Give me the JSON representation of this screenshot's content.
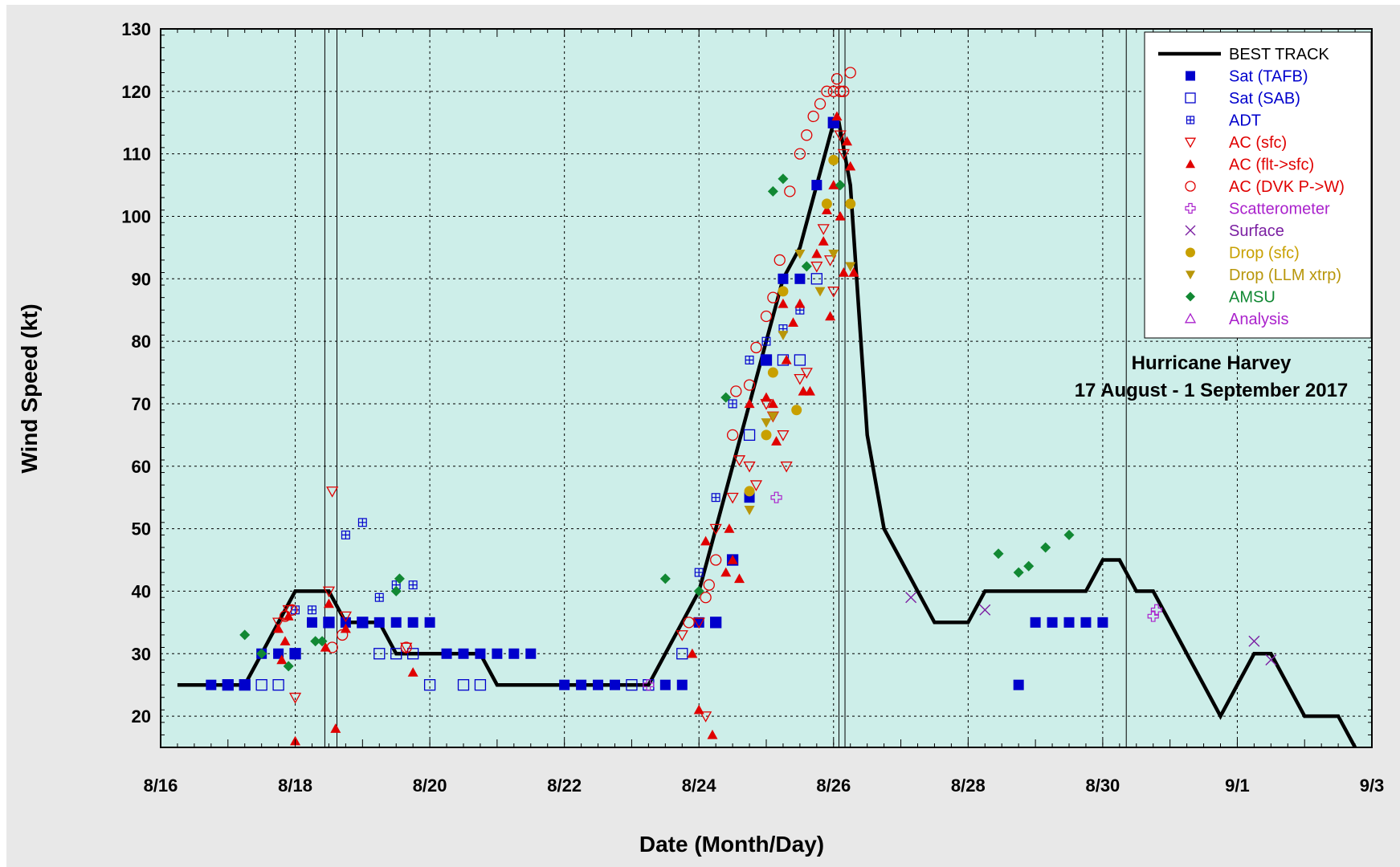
{
  "chart_data": {
    "type": "scatter",
    "title": "",
    "annotation_lines": [
      "Hurricane Harvey",
      "17 August - 1 September 2017"
    ],
    "xlabel": "Date (Month/Day)",
    "ylabel": "Wind Speed (kt)",
    "x_unit": "days since 8/16 00 UTC",
    "xlim": [
      0,
      18
    ],
    "ylim": [
      15,
      130
    ],
    "x_ticks": [
      {
        "x": 0,
        "label": "8/16"
      },
      {
        "x": 2,
        "label": "8/18"
      },
      {
        "x": 4,
        "label": "8/20"
      },
      {
        "x": 6,
        "label": "8/22"
      },
      {
        "x": 8,
        "label": "8/24"
      },
      {
        "x": 10,
        "label": "8/26"
      },
      {
        "x": 12,
        "label": "8/28"
      },
      {
        "x": 14,
        "label": "8/30"
      },
      {
        "x": 16,
        "label": "9/1"
      },
      {
        "x": 18,
        "label": "9/3"
      }
    ],
    "y_ticks": [
      20,
      30,
      40,
      50,
      60,
      70,
      80,
      90,
      100,
      110,
      120,
      130
    ],
    "grid": true,
    "legend_position": "top-right",
    "background_color": "#cdeee9",
    "vertical_lines": [
      2.44,
      2.62,
      10.08,
      10.17,
      14.35
    ],
    "series": [
      {
        "name": "BEST TRACK",
        "marker": "line",
        "color": "#000000",
        "points": [
          [
            0.25,
            25
          ],
          [
            0.5,
            25
          ],
          [
            0.75,
            25
          ],
          [
            1.0,
            25
          ],
          [
            1.25,
            25
          ],
          [
            1.5,
            30
          ],
          [
            1.75,
            35
          ],
          [
            2.0,
            40
          ],
          [
            2.25,
            40
          ],
          [
            2.5,
            40
          ],
          [
            2.75,
            35
          ],
          [
            3.0,
            35
          ],
          [
            3.25,
            35
          ],
          [
            3.5,
            30
          ],
          [
            3.75,
            30
          ],
          [
            4.0,
            30
          ],
          [
            4.25,
            30
          ],
          [
            4.5,
            30
          ],
          [
            4.75,
            30
          ],
          [
            5.0,
            25
          ],
          [
            5.25,
            25
          ],
          [
            5.5,
            25
          ],
          [
            5.75,
            25
          ],
          [
            6.0,
            25
          ],
          [
            6.25,
            25
          ],
          [
            6.5,
            25
          ],
          [
            6.75,
            25
          ],
          [
            7.0,
            25
          ],
          [
            7.25,
            25
          ],
          [
            7.5,
            30
          ],
          [
            7.75,
            35
          ],
          [
            8.0,
            40
          ],
          [
            8.25,
            50
          ],
          [
            8.5,
            60
          ],
          [
            8.75,
            70
          ],
          [
            9.0,
            80
          ],
          [
            9.25,
            90
          ],
          [
            9.5,
            95
          ],
          [
            9.75,
            105
          ],
          [
            10.0,
            115
          ],
          [
            10.08,
            115
          ],
          [
            10.25,
            105
          ],
          [
            10.5,
            65
          ],
          [
            10.75,
            50
          ],
          [
            11.0,
            45
          ],
          [
            11.25,
            40
          ],
          [
            11.5,
            35
          ],
          [
            11.75,
            35
          ],
          [
            12.0,
            35
          ],
          [
            12.25,
            40
          ],
          [
            12.5,
            40
          ],
          [
            12.75,
            40
          ],
          [
            13.0,
            40
          ],
          [
            13.25,
            40
          ],
          [
            13.5,
            40
          ],
          [
            13.75,
            40
          ],
          [
            14.0,
            45
          ],
          [
            14.25,
            45
          ],
          [
            14.5,
            40
          ],
          [
            14.75,
            40
          ],
          [
            15.0,
            35
          ],
          [
            15.25,
            30
          ],
          [
            15.5,
            25
          ],
          [
            15.75,
            20
          ],
          [
            16.0,
            25
          ],
          [
            16.25,
            30
          ],
          [
            16.5,
            30
          ],
          [
            16.75,
            25
          ],
          [
            17.0,
            20
          ],
          [
            17.25,
            20
          ],
          [
            17.5,
            20
          ],
          [
            17.75,
            15
          ]
        ]
      },
      {
        "name": "Sat (TAFB)",
        "marker": "square-filled",
        "color": "#0000cc",
        "points": [
          [
            0.75,
            25
          ],
          [
            1.0,
            25
          ],
          [
            1.25,
            25
          ],
          [
            1.5,
            30
          ],
          [
            1.75,
            30
          ],
          [
            2.0,
            30
          ],
          [
            2.25,
            35
          ],
          [
            2.5,
            35
          ],
          [
            2.75,
            35
          ],
          [
            3.0,
            35
          ],
          [
            3.25,
            35
          ],
          [
            3.5,
            35
          ],
          [
            3.75,
            35
          ],
          [
            4.0,
            35
          ],
          [
            4.25,
            30
          ],
          [
            4.5,
            30
          ],
          [
            4.75,
            30
          ],
          [
            5.0,
            30
          ],
          [
            5.25,
            30
          ],
          [
            5.5,
            30
          ],
          [
            6.0,
            25
          ],
          [
            6.25,
            25
          ],
          [
            6.5,
            25
          ],
          [
            6.75,
            25
          ],
          [
            7.5,
            25
          ],
          [
            7.75,
            25
          ],
          [
            8.0,
            35
          ],
          [
            8.25,
            35
          ],
          [
            8.5,
            45
          ],
          [
            8.75,
            55
          ],
          [
            9.0,
            77
          ],
          [
            9.25,
            90
          ],
          [
            9.5,
            90
          ],
          [
            9.75,
            105
          ],
          [
            10.0,
            115
          ],
          [
            12.75,
            25
          ],
          [
            13.0,
            35
          ],
          [
            13.25,
            35
          ],
          [
            13.5,
            35
          ],
          [
            13.75,
            35
          ],
          [
            14.0,
            35
          ]
        ]
      },
      {
        "name": "Sat (SAB)",
        "marker": "square-open",
        "color": "#0000cc",
        "points": [
          [
            1.0,
            25
          ],
          [
            1.25,
            25
          ],
          [
            1.5,
            25
          ],
          [
            1.75,
            25
          ],
          [
            2.0,
            30
          ],
          [
            2.5,
            35
          ],
          [
            3.0,
            35
          ],
          [
            3.25,
            30
          ],
          [
            3.5,
            30
          ],
          [
            3.75,
            30
          ],
          [
            4.0,
            25
          ],
          [
            4.5,
            25
          ],
          [
            4.75,
            25
          ],
          [
            7.0,
            25
          ],
          [
            7.25,
            25
          ],
          [
            7.75,
            30
          ],
          [
            8.25,
            35
          ],
          [
            8.5,
            45
          ],
          [
            8.75,
            65
          ],
          [
            9.0,
            77
          ],
          [
            9.25,
            77
          ],
          [
            9.5,
            77
          ],
          [
            9.75,
            90
          ],
          [
            10.0,
            115
          ]
        ]
      },
      {
        "name": "ADT",
        "marker": "square-plus",
        "color": "#0000cc",
        "points": [
          [
            2.0,
            37
          ],
          [
            2.25,
            37
          ],
          [
            2.75,
            49
          ],
          [
            3.0,
            51
          ],
          [
            3.25,
            39
          ],
          [
            3.5,
            41
          ],
          [
            3.75,
            41
          ],
          [
            8.0,
            43
          ],
          [
            8.25,
            55
          ],
          [
            8.5,
            70
          ],
          [
            8.75,
            77
          ],
          [
            9.0,
            80
          ],
          [
            9.25,
            82
          ],
          [
            9.5,
            85
          ],
          [
            9.75,
            105
          ]
        ]
      },
      {
        "name": "AC (sfc)",
        "marker": "triangle-down-open",
        "color": "#e00000",
        "points": [
          [
            1.75,
            35
          ],
          [
            1.9,
            37
          ],
          [
            2.0,
            23
          ],
          [
            2.5,
            40
          ],
          [
            2.55,
            56
          ],
          [
            2.75,
            36
          ],
          [
            3.65,
            31
          ],
          [
            7.75,
            33
          ],
          [
            8.0,
            35
          ],
          [
            8.1,
            20
          ],
          [
            8.25,
            50
          ],
          [
            8.5,
            55
          ],
          [
            8.6,
            61
          ],
          [
            8.75,
            60
          ],
          [
            8.85,
            57
          ],
          [
            9.0,
            70
          ],
          [
            9.1,
            68
          ],
          [
            9.25,
            65
          ],
          [
            9.3,
            60
          ],
          [
            9.5,
            74
          ],
          [
            9.6,
            75
          ],
          [
            9.75,
            92
          ],
          [
            9.85,
            98
          ],
          [
            9.95,
            93
          ],
          [
            10.0,
            88
          ],
          [
            10.1,
            113
          ],
          [
            10.15,
            110
          ]
        ]
      },
      {
        "name": "AC (flt->sfc)",
        "marker": "triangle-up-filled",
        "color": "#e00000",
        "points": [
          [
            1.75,
            34
          ],
          [
            1.8,
            29
          ],
          [
            1.85,
            32
          ],
          [
            1.9,
            36
          ],
          [
            2.0,
            16
          ],
          [
            2.45,
            31
          ],
          [
            2.5,
            38
          ],
          [
            2.6,
            18
          ],
          [
            2.75,
            34
          ],
          [
            3.75,
            27
          ],
          [
            7.9,
            30
          ],
          [
            8.0,
            21
          ],
          [
            8.1,
            48
          ],
          [
            8.2,
            17
          ],
          [
            8.4,
            43
          ],
          [
            8.45,
            50
          ],
          [
            8.5,
            45
          ],
          [
            8.6,
            42
          ],
          [
            8.75,
            70
          ],
          [
            9.0,
            71
          ],
          [
            9.1,
            70
          ],
          [
            9.15,
            64
          ],
          [
            9.25,
            86
          ],
          [
            9.3,
            77
          ],
          [
            9.4,
            83
          ],
          [
            9.5,
            86
          ],
          [
            9.55,
            72
          ],
          [
            9.65,
            72
          ],
          [
            9.75,
            94
          ],
          [
            9.85,
            96
          ],
          [
            9.9,
            101
          ],
          [
            10.0,
            105
          ],
          [
            10.05,
            116
          ],
          [
            10.1,
            100
          ],
          [
            10.15,
            91
          ],
          [
            10.2,
            112
          ],
          [
            10.25,
            108
          ],
          [
            10.3,
            91
          ],
          [
            9.95,
            84
          ]
        ]
      },
      {
        "name": "AC (DVK P->W)",
        "marker": "circle-open",
        "color": "#e00000",
        "points": [
          [
            1.85,
            36
          ],
          [
            1.95,
            37
          ],
          [
            2.55,
            31
          ],
          [
            2.7,
            33
          ],
          [
            3.65,
            31
          ],
          [
            7.85,
            35
          ],
          [
            8.1,
            39
          ],
          [
            8.15,
            41
          ],
          [
            8.25,
            45
          ],
          [
            8.5,
            65
          ],
          [
            8.55,
            72
          ],
          [
            8.75,
            73
          ],
          [
            8.85,
            79
          ],
          [
            9.0,
            84
          ],
          [
            9.1,
            87
          ],
          [
            9.2,
            93
          ],
          [
            9.35,
            104
          ],
          [
            9.5,
            110
          ],
          [
            9.6,
            113
          ],
          [
            9.7,
            116
          ],
          [
            9.8,
            118
          ],
          [
            9.9,
            120
          ],
          [
            10.0,
            120
          ],
          [
            10.05,
            122
          ],
          [
            10.1,
            120
          ],
          [
            10.15,
            120
          ],
          [
            10.25,
            123
          ]
        ]
      },
      {
        "name": "Scatterometer",
        "marker": "plus-open",
        "color": "#aa22cc",
        "points": [
          [
            7.25,
            25
          ],
          [
            9.15,
            55
          ],
          [
            14.75,
            36
          ],
          [
            14.8,
            37
          ]
        ]
      },
      {
        "name": "Surface",
        "marker": "x",
        "color": "#7b1fa2",
        "points": [
          [
            11.15,
            39
          ],
          [
            12.25,
            37
          ],
          [
            16.25,
            32
          ],
          [
            16.5,
            29
          ]
        ]
      },
      {
        "name": "Drop (sfc)",
        "marker": "circle-filled",
        "color": "#c8a000",
        "points": [
          [
            8.75,
            56
          ],
          [
            9.0,
            65
          ],
          [
            9.1,
            75
          ],
          [
            9.25,
            88
          ],
          [
            9.45,
            69
          ],
          [
            9.9,
            102
          ],
          [
            10.0,
            109
          ],
          [
            10.25,
            102
          ]
        ]
      },
      {
        "name": "Drop (LLM xtrp)",
        "marker": "triangle-down-filled",
        "color": "#b8960a",
        "points": [
          [
            8.75,
            53
          ],
          [
            9.0,
            67
          ],
          [
            9.1,
            68
          ],
          [
            9.25,
            81
          ],
          [
            9.5,
            94
          ],
          [
            9.8,
            88
          ],
          [
            10.0,
            94
          ],
          [
            10.25,
            92
          ]
        ]
      },
      {
        "name": "AMSU",
        "marker": "diamond-filled",
        "color": "#118833",
        "points": [
          [
            1.25,
            33
          ],
          [
            1.5,
            30
          ],
          [
            1.9,
            28
          ],
          [
            2.3,
            32
          ],
          [
            2.4,
            32
          ],
          [
            3.5,
            40
          ],
          [
            3.55,
            42
          ],
          [
            7.5,
            42
          ],
          [
            8.0,
            40
          ],
          [
            8.4,
            71
          ],
          [
            9.1,
            104
          ],
          [
            9.25,
            106
          ],
          [
            9.6,
            92
          ],
          [
            10.1,
            105
          ],
          [
            12.45,
            46
          ],
          [
            12.75,
            43
          ],
          [
            12.9,
            44
          ],
          [
            13.15,
            47
          ],
          [
            13.5,
            49
          ]
        ]
      },
      {
        "name": "Analysis",
        "marker": "triangle-up-open",
        "color": "#aa22cc",
        "points": []
      }
    ]
  }
}
